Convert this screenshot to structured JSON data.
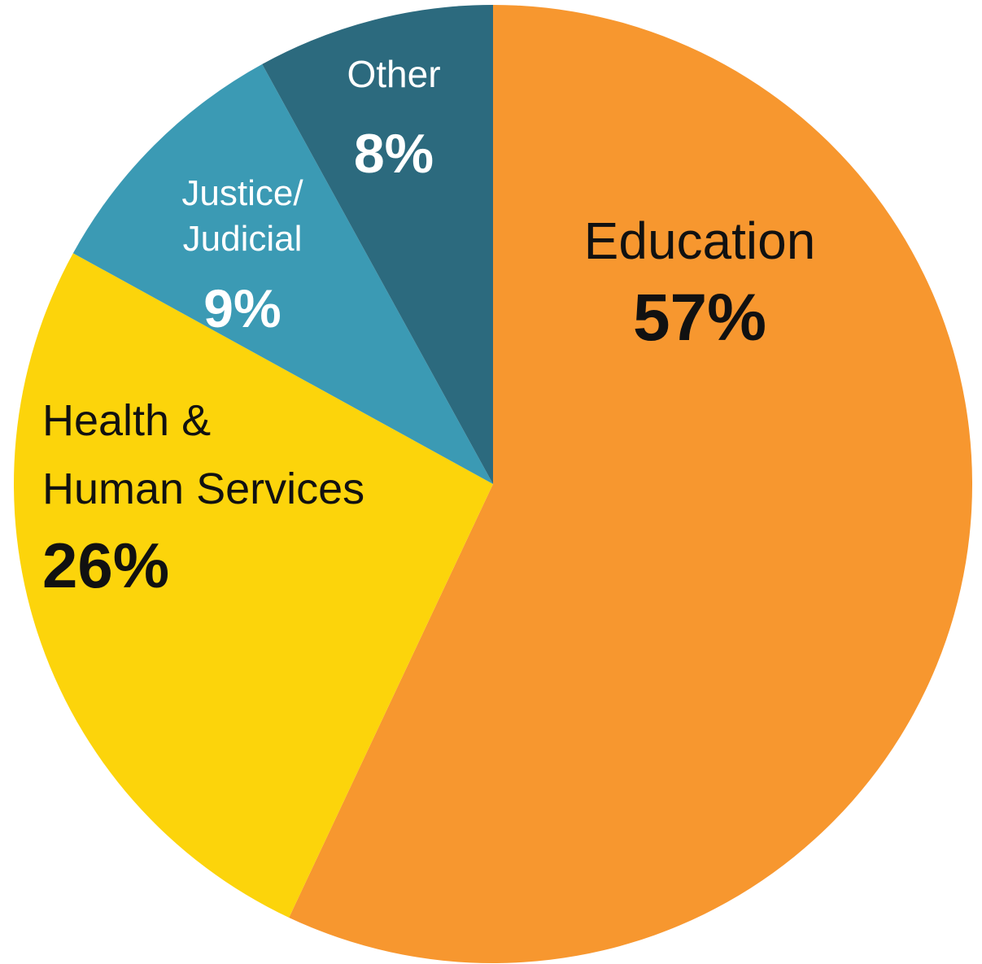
{
  "chart_data": {
    "type": "pie",
    "start": "12 o'clock",
    "direction": "clockwise",
    "slices": [
      {
        "label": "Education",
        "label_lines": [
          "Education"
        ],
        "value": 57,
        "value_label": "57%",
        "color": "#F7972F",
        "text_color": "#111111"
      },
      {
        "label": "Health & Human Services",
        "label_lines": [
          "Health &",
          "Human Services"
        ],
        "value": 26,
        "value_label": "26%",
        "color": "#FCD40B",
        "text_color": "#111111"
      },
      {
        "label": "Justice/ Judicial",
        "label_lines": [
          "Justice/",
          "Judicial"
        ],
        "value": 9,
        "value_label": "9%",
        "color": "#3B9AB4",
        "text_color": "#ffffff"
      },
      {
        "label": "Other",
        "label_lines": [
          "Other"
        ],
        "value": 8,
        "value_label": "8%",
        "color": "#2C6A7E",
        "text_color": "#ffffff"
      }
    ]
  }
}
